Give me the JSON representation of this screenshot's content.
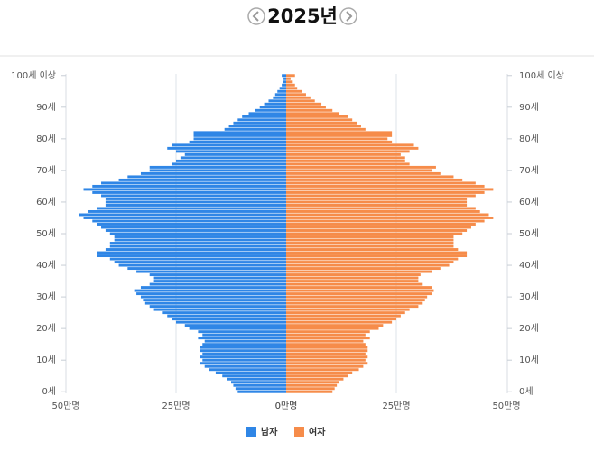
{
  "chart_data": {
    "type": "pyramid",
    "title": "2025년",
    "categories": [
      "0세",
      null,
      null,
      null,
      null,
      null,
      null,
      null,
      null,
      null,
      "10세",
      null,
      null,
      null,
      null,
      null,
      null,
      null,
      null,
      null,
      "20세",
      null,
      null,
      null,
      null,
      null,
      null,
      null,
      null,
      null,
      "30세",
      null,
      null,
      null,
      null,
      null,
      null,
      null,
      null,
      null,
      "40세",
      null,
      null,
      null,
      null,
      null,
      null,
      null,
      null,
      null,
      "50세",
      null,
      null,
      null,
      null,
      null,
      null,
      null,
      null,
      null,
      "60세",
      null,
      null,
      null,
      null,
      null,
      null,
      null,
      null,
      null,
      "70세",
      null,
      null,
      null,
      null,
      null,
      null,
      null,
      null,
      null,
      "80세",
      null,
      null,
      null,
      null,
      null,
      null,
      null,
      null,
      null,
      "90세",
      null,
      null,
      null,
      null,
      null,
      null,
      null,
      null,
      null,
      "100세 이상"
    ],
    "series": [
      {
        "name": "남자",
        "color": "#2f86e6",
        "values": [
          11,
          11.5,
          12,
          12.5,
          13.5,
          14.5,
          16,
          17.5,
          18.5,
          19.5,
          19,
          19.5,
          19,
          19.5,
          19.5,
          19,
          18.5,
          20,
          19,
          20,
          22,
          23,
          25,
          26,
          27,
          28,
          30,
          31,
          32,
          32.5,
          33,
          34,
          34.5,
          33,
          31,
          30,
          30,
          31,
          34,
          36,
          38,
          39,
          40,
          43,
          43,
          41,
          40,
          40,
          39,
          39,
          40,
          41,
          42,
          43,
          44,
          46,
          47,
          45,
          43,
          41,
          41,
          41,
          42,
          44,
          46,
          44,
          42,
          38,
          36,
          33,
          31,
          31,
          26,
          25,
          24,
          23,
          25,
          27,
          26,
          22,
          21,
          21,
          21,
          14,
          13,
          12,
          11,
          10,
          8.5,
          7,
          6,
          5,
          4,
          3,
          2.5,
          2,
          1.5,
          1,
          0.8,
          0.6,
          1
        ]
      },
      {
        "name": "여자",
        "color": "#f68c4a",
        "values": [
          10.5,
          11,
          11.5,
          12,
          13,
          14,
          15,
          16.5,
          17.5,
          18.5,
          18,
          18.5,
          18,
          18.5,
          18.5,
          18,
          17.5,
          19,
          18,
          19,
          21,
          22,
          24,
          25,
          26,
          27,
          28,
          30,
          31,
          31.5,
          32,
          33,
          33.5,
          33,
          31,
          30,
          30,
          30.5,
          33,
          35,
          37,
          38,
          39,
          41,
          41,
          39,
          38,
          38,
          38,
          38,
          40,
          41,
          42,
          43,
          45,
          47,
          46,
          44,
          43,
          41,
          41,
          41,
          43,
          45,
          47,
          45,
          43,
          40,
          38,
          35,
          33,
          34,
          28,
          27,
          27,
          26,
          28,
          30,
          29,
          24,
          23,
          24,
          24,
          18,
          17,
          16,
          15,
          14,
          12,
          10.5,
          9,
          8,
          6.5,
          5.5,
          4.5,
          3.5,
          2.5,
          2,
          1.5,
          1,
          2
        ]
      }
    ],
    "xlim": [
      0,
      50
    ],
    "xticks": [
      {
        "value": 0,
        "label": "0만명"
      },
      {
        "value": 25,
        "label": "25만명"
      },
      {
        "value": 50,
        "label": "50만명"
      }
    ],
    "grid": true
  }
}
